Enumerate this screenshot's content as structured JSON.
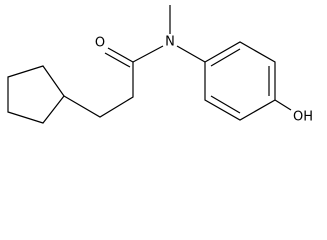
{
  "atoms": [
    {
      "label": "O"
    },
    {
      "label": "N"
    },
    {
      "label": "OH"
    }
  ]
}
